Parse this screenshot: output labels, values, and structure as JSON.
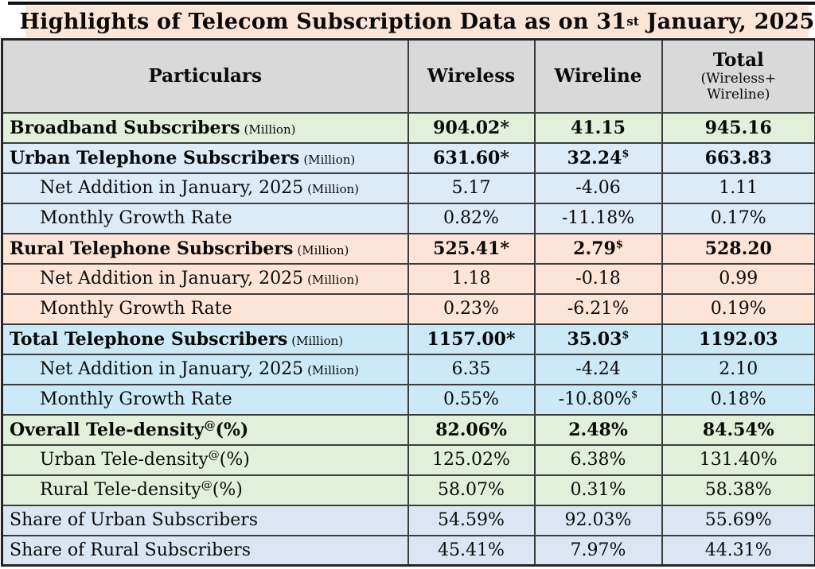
{
  "title": {
    "text": "Highlights of Telecom Subscription Data as on 31",
    "sup": "st",
    "tail": " January, 2025"
  },
  "chart_data": {
    "type": "table",
    "columns": {
      "particulars": "Particulars",
      "wireless": "Wireless",
      "wireline": "Wireline",
      "total_main": "Total",
      "total_sub1": "(Wireless+",
      "total_sub2": "Wireline)"
    },
    "rows": [
      {
        "label": "Broadband Subscribers",
        "unit": "(Million)",
        "wireless": "904.02*",
        "wireline": "41.15",
        "total": "945.16"
      },
      {
        "label": "Urban Telephone Subscribers",
        "unit": "(Million)",
        "wireless": "631.60*",
        "wireline": "32.24",
        "wireline_sup": "$",
        "total": "663.83"
      },
      {
        "label": "Net Addition in January, 2025",
        "unit": "(Million)",
        "wireless": "5.17",
        "wireline": "-4.06",
        "total": "1.11"
      },
      {
        "label": "Monthly Growth Rate",
        "wireless": "0.82%",
        "wireline": "-11.18%",
        "total": "0.17%"
      },
      {
        "label": "Rural Telephone Subscribers",
        "unit": "(Million)",
        "wireless": "525.41*",
        "wireline": "2.79",
        "wireline_sup": "$",
        "total": "528.20"
      },
      {
        "label": "Net Addition in January, 2025",
        "unit": "(Million)",
        "wireless": "1.18",
        "wireline": "-0.18",
        "total": "0.99"
      },
      {
        "label": "Monthly Growth Rate",
        "wireless": "0.23%",
        "wireline": "-6.21%",
        "total": "0.19%"
      },
      {
        "label": "Total Telephone Subscribers",
        "unit": "(Million)",
        "wireless": "1157.00*",
        "wireline": "35.03",
        "wireline_sup": "$",
        "total": "1192.03"
      },
      {
        "label": "Net Addition in January, 2025",
        "unit": "(Million)",
        "wireless": "6.35",
        "wireline": "-4.24",
        "total": "2.10"
      },
      {
        "label": "Monthly Growth Rate",
        "wireless": "0.55%",
        "wireline": "-10.80%",
        "wireline_sup": "$",
        "total": "0.18%"
      },
      {
        "label": "Overall Tele-density",
        "label_sup": "@",
        "label_tail": "(%)",
        "wireless": "82.06%",
        "wireline": "2.48%",
        "total": "84.54%"
      },
      {
        "label": "Urban Tele-density",
        "label_sup": "@",
        "label_tail": "(%)",
        "wireless": "125.02%",
        "wireline": "6.38%",
        "total": "131.40%"
      },
      {
        "label": "Rural Tele-density",
        "label_sup": "@",
        "label_tail": "(%)",
        "wireless": "58.07%",
        "wireline": "0.31%",
        "total": "58.38%"
      },
      {
        "label": "Share of Urban Subscribers",
        "wireless": "54.59%",
        "wireline": "92.03%",
        "total": "55.69%"
      },
      {
        "label": "Share of Rural Subscribers",
        "wireless": "45.41%",
        "wireline": "7.97%",
        "total": "44.31%"
      }
    ]
  },
  "colors": {
    "title_bg": "#FBE5D6",
    "header_bg": "#D9D9D9",
    "section_broadband_bg": "#E2EFDA",
    "section_urban_bg": "#DDEBF7",
    "section_rural_bg": "#FCE4D6",
    "section_total_bg": "#CBE9F6",
    "section_teledensity_bg": "#E2EFDA",
    "section_share_bg": "#DCE6F2",
    "border": "#3D3D3D",
    "text": "#0A0A0A"
  }
}
